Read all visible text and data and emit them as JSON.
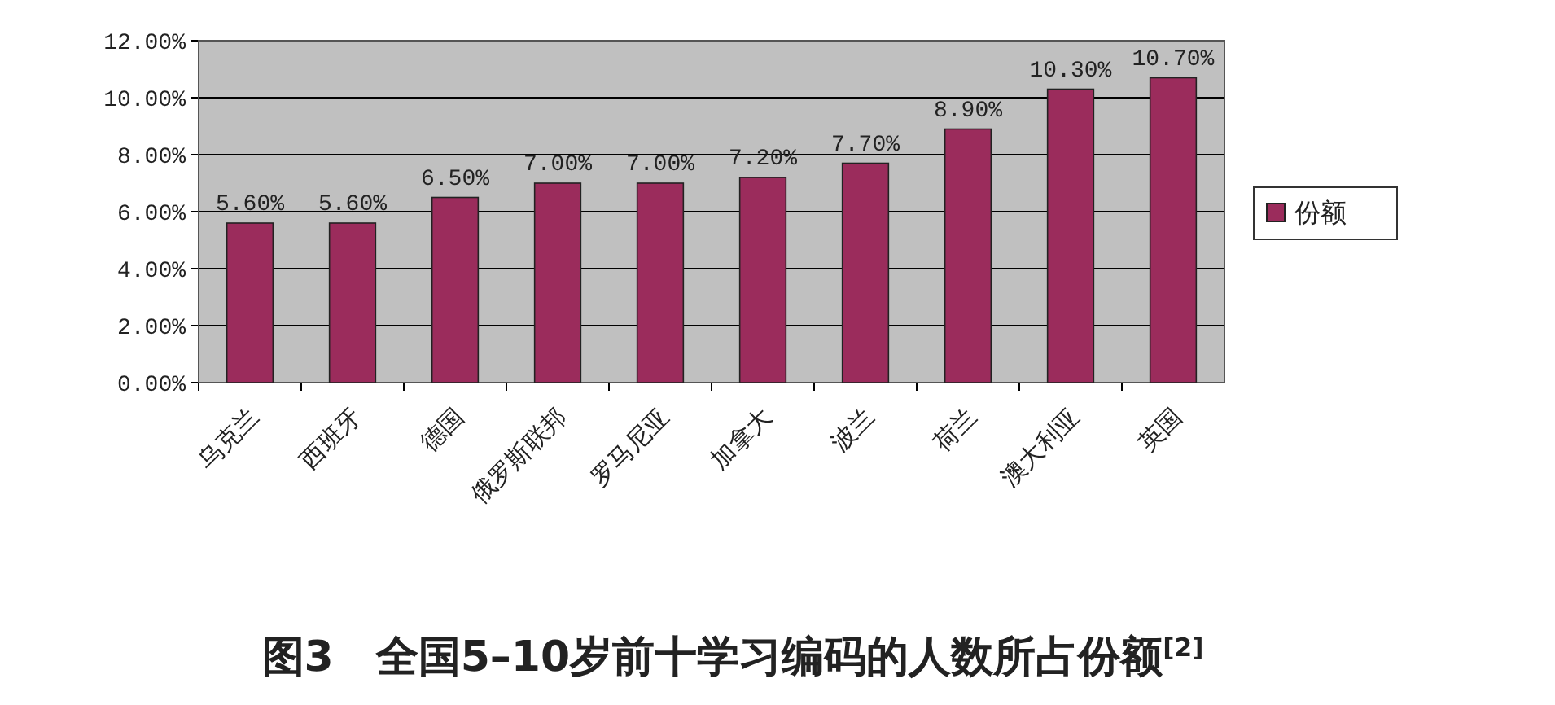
{
  "chart_data": {
    "type": "bar",
    "title": "图3　全国5–10岁前十学习编码的人数所占份额$^{[2]}$",
    "categories": [
      "乌克兰",
      "西班牙",
      "德国",
      "俄罗斯联邦",
      "罗马尼亚",
      "加拿大",
      "波兰",
      "荷兰",
      "澳大利亚",
      "英国"
    ],
    "series": [
      {
        "name": "份额",
        "color": "#9b2c5c",
        "values": [
          5.6,
          5.6,
          6.5,
          7.0,
          7.0,
          7.2,
          7.7,
          8.9,
          10.3,
          10.7
        ],
        "value_labels": [
          "5.60%",
          "5.60%",
          "6.50%",
          "7.00%",
          "7.00%",
          "7.20%",
          "7.70%",
          "8.90%",
          "10.30%",
          "10.70%"
        ]
      }
    ],
    "ylim": [
      0,
      12
    ],
    "yticks": [
      {
        "value": 0,
        "label": "0.00%"
      },
      {
        "value": 2,
        "label": "2.00%"
      },
      {
        "value": 4,
        "label": "4.00%"
      },
      {
        "value": 6,
        "label": "6.00%"
      },
      {
        "value": 8,
        "label": "8.00%"
      },
      {
        "value": 10,
        "label": "10.00%"
      },
      {
        "value": 12,
        "label": "12.00%"
      }
    ],
    "grid": "y",
    "legend": "right"
  }
}
